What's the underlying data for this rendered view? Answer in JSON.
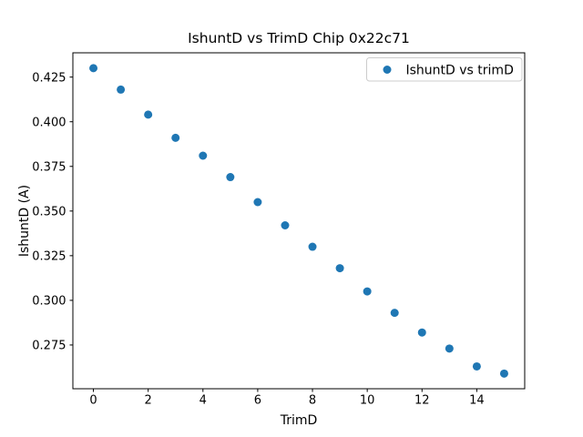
{
  "figure": {
    "background": "#ffffff",
    "text_color": "#000000",
    "spine_color": "#000000",
    "legend_border_color": "#cccccc"
  },
  "chart_data": {
    "type": "scatter",
    "title": "IshuntD vs TrimD Chip 0x22c71",
    "xlabel": "TrimD",
    "ylabel": "IshuntD (A)",
    "legend": {
      "position": "upper right",
      "entries": [
        "IshuntD vs trimD"
      ]
    },
    "x": [
      0,
      1,
      2,
      3,
      4,
      5,
      6,
      7,
      8,
      9,
      10,
      11,
      12,
      13,
      14,
      15
    ],
    "y": [
      0.43,
      0.418,
      0.404,
      0.391,
      0.381,
      0.369,
      0.355,
      0.342,
      0.33,
      0.318,
      0.305,
      0.293,
      0.282,
      0.273,
      0.263,
      0.259
    ],
    "xlim": [
      -0.75,
      15.75
    ],
    "ylim": [
      0.2505,
      0.4386
    ],
    "xticks": [
      0,
      2,
      4,
      6,
      8,
      10,
      12,
      14
    ],
    "yticks": [
      0.275,
      0.3,
      0.325,
      0.35,
      0.375,
      0.4,
      0.425
    ],
    "ytick_decimals": 3,
    "grid": false,
    "marker_color": "#1f77b4",
    "marker_radius": 4.5
  }
}
